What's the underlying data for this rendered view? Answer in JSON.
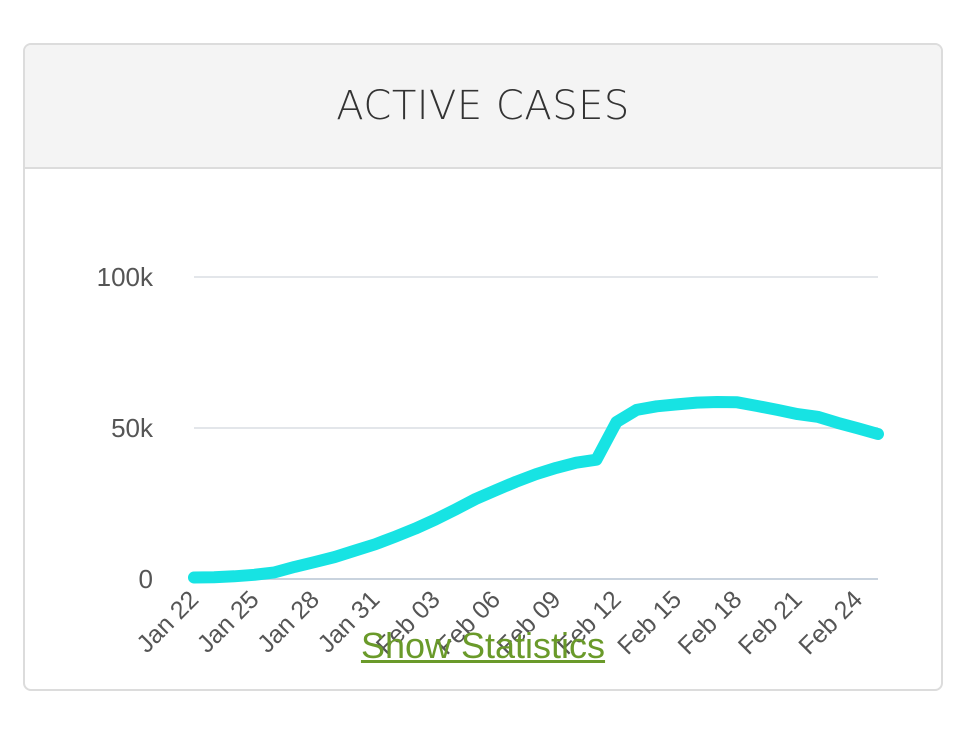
{
  "card": {
    "title": "ACTIVE CASES",
    "link_label": "Show Statistics"
  },
  "colors": {
    "line": "#17e3e3",
    "grid": "#e3e6ea",
    "baseline": "#c9d3de",
    "link": "#6a9a2a"
  },
  "chart_data": {
    "type": "line",
    "title": "ACTIVE CASES",
    "xlabel": "",
    "ylabel": "",
    "ylim": [
      0,
      100000
    ],
    "yticks": [
      0,
      50000,
      100000
    ],
    "ytick_labels": [
      "0",
      "50k",
      "100k"
    ],
    "xtick_labels": [
      "Jan 22",
      "Jan 25",
      "Jan 28",
      "Jan 31",
      "Feb 03",
      "Feb 06",
      "Feb 09",
      "Feb 12",
      "Feb 15",
      "Feb 18",
      "Feb 21",
      "Feb 24"
    ],
    "grid": true,
    "legend": "none",
    "x": [
      "Jan 22",
      "Jan 23",
      "Jan 24",
      "Jan 25",
      "Jan 26",
      "Jan 27",
      "Jan 28",
      "Jan 29",
      "Jan 30",
      "Jan 31",
      "Feb 01",
      "Feb 02",
      "Feb 03",
      "Feb 04",
      "Feb 05",
      "Feb 06",
      "Feb 07",
      "Feb 08",
      "Feb 09",
      "Feb 10",
      "Feb 11",
      "Feb 12",
      "Feb 13",
      "Feb 14",
      "Feb 15",
      "Feb 16",
      "Feb 17",
      "Feb 18",
      "Feb 19",
      "Feb 20",
      "Feb 21",
      "Feb 22",
      "Feb 23",
      "Feb 24",
      "Feb 25"
    ],
    "series": [
      {
        "values": [
          500,
          600,
          900,
          1400,
          2200,
          4000,
          5600,
          7300,
          9400,
          11500,
          14000,
          16700,
          19700,
          23000,
          26500,
          29400,
          32200,
          34700,
          36800,
          38500,
          39500,
          52000,
          56000,
          57200,
          57800,
          58400,
          58600,
          58500,
          57300,
          56000,
          54600,
          53700,
          51700,
          49900,
          48000
        ]
      }
    ]
  }
}
